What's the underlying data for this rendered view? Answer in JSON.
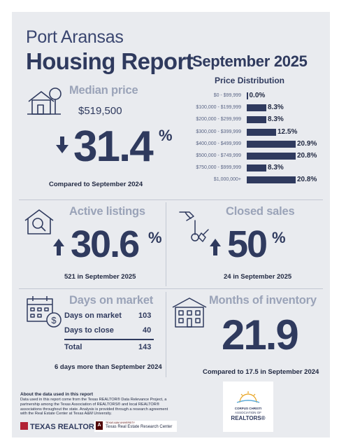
{
  "header": {
    "city": "Port Aransas",
    "report": "Housing Report",
    "month": "September 2025"
  },
  "median_price": {
    "title": "Median price",
    "value": "$519,500",
    "change": "31.4",
    "pct": "%",
    "direction": "down",
    "note": "Compared to September 2024"
  },
  "price_distribution": {
    "title": "Price Distribution",
    "rows": [
      {
        "range": "$0 - $99,999",
        "value": "0.0%",
        "share": 0.0
      },
      {
        "range": "$100,000 - $199,999",
        "value": "8.3%",
        "share": 8.3
      },
      {
        "range": "$200,000 - $299,999",
        "value": "8.3%",
        "share": 8.3
      },
      {
        "range": "$300,000 - $399,999",
        "value": "12.5%",
        "share": 12.5
      },
      {
        "range": "$400,000 - $499,999",
        "value": "20.9%",
        "share": 20.9
      },
      {
        "range": "$500,000 - $749,999",
        "value": "20.8%",
        "share": 20.8
      },
      {
        "range": "$750,000 - $999,999",
        "value": "8.3%",
        "share": 8.3
      },
      {
        "range": "$1,000,000+",
        "value": "20.8%",
        "share": 20.8
      }
    ]
  },
  "active_listings": {
    "title": "Active listings",
    "change": "30.6",
    "pct": "%",
    "direction": "up",
    "note": "521 in September 2025"
  },
  "closed_sales": {
    "title": "Closed sales",
    "change": "50",
    "pct": "%",
    "direction": "up",
    "note": "24 in September 2025"
  },
  "days_on_market": {
    "title": "Days on market",
    "rows": [
      {
        "label": "Days on market",
        "value": "103"
      },
      {
        "label": "Days to close",
        "value": "40"
      }
    ],
    "total_label": "Total",
    "total_value": "143",
    "note": "6 days more than September 2024"
  },
  "months_inventory": {
    "title": "Months of inventory",
    "value": "21.9",
    "note": "Compared to 17.5 in September 2024"
  },
  "footer": {
    "about_title": "About the data used in this report",
    "about_text": "Data used in this report come from the Texas REALTOR® Data Relevance Project, a partnership among the Texas Association of REALTORS® and local REALTOR® associations throughout the state. Analysis is provided through a research agreement with the Real Estate Center at Texas A&M University.",
    "logo_texas_realtors": "TEXAS REALTORS",
    "logo_trec_small": "TEXAS A&M UNIVERSITY",
    "logo_trec": "Texas Real Estate Research Center",
    "logo_cc_line1": "CORPUS CHRISTI",
    "logo_cc_line2": "ASSOCIATION OF",
    "logo_cc_line3": "REALTORS®"
  },
  "colors": {
    "navy": "#2f3a5e",
    "muted": "#9aa3b8",
    "panel": "#e9ebef"
  }
}
